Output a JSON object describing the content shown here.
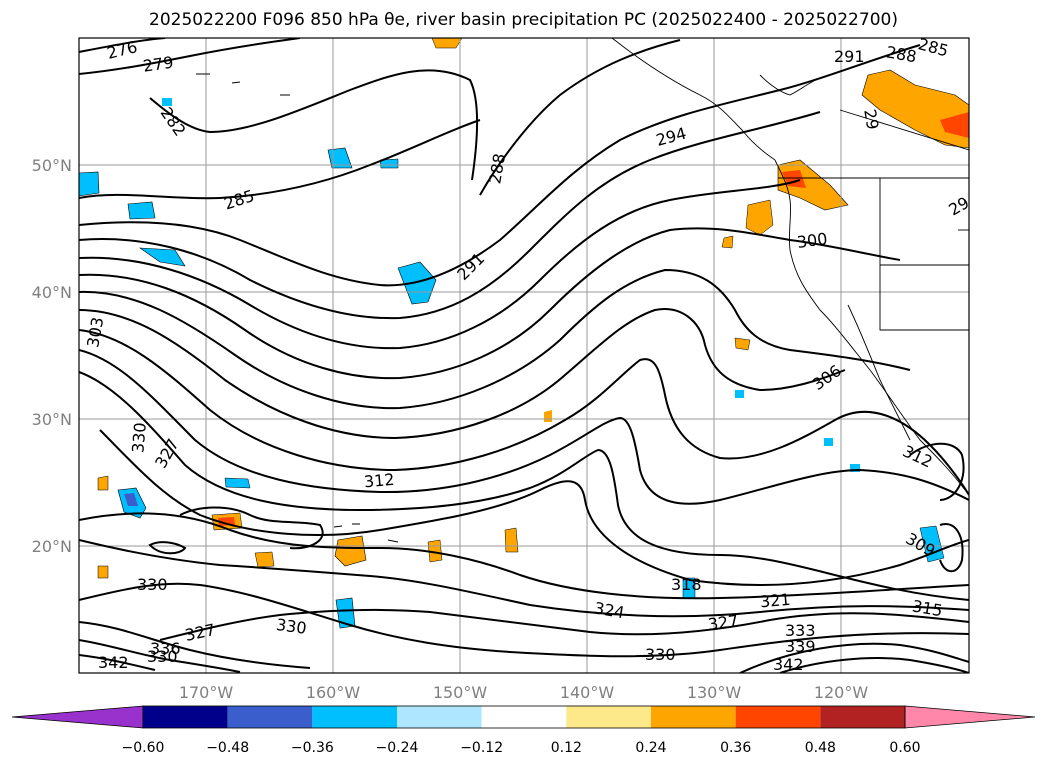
{
  "title": "2025022200 F096 850 hPa θe, river basin precipitation PC (2025022400 - 2025022700)",
  "colors": {
    "contour": "#000000",
    "gridline": "#9a9a9a",
    "coast": "#000000",
    "neg_fill": "#00bfff",
    "neg_light": "#aee6ff",
    "pos_fill": "#ffa500",
    "pos_light": "#fde98a",
    "pos_strong": "#ff4500"
  },
  "axes": {
    "lat_labels": [
      "50°N",
      "40°N",
      "30°N",
      "20°N"
    ],
    "lon_labels": [
      "170°W",
      "160°W",
      "150°W",
      "140°W",
      "130°W",
      "120°W"
    ]
  },
  "contour_labels": [
    "276",
    "279",
    "282",
    "285",
    "288",
    "291",
    "288",
    "291",
    "294",
    "300",
    "303",
    "306",
    "312",
    "309",
    "330",
    "327",
    "312",
    "330",
    "327",
    "330",
    "336",
    "342",
    "330",
    "318",
    "324",
    "327",
    "321",
    "315",
    "330",
    "333",
    "339",
    "342",
    "285",
    "29",
    "29"
  ],
  "colorbar": {
    "colors": [
      "#9932cc",
      "#00008b",
      "#3a5fcd",
      "#00bfff",
      "#aee6ff",
      "#ffffff",
      "#fde98a",
      "#ffa500",
      "#ff4500",
      "#b22222",
      "#ff88aa"
    ],
    "tick_labels": [
      "−0.60",
      "−0.48",
      "−0.36",
      "−0.24",
      "−0.12",
      "0.12",
      "0.24",
      "0.36",
      "0.48",
      "0.60"
    ]
  }
}
